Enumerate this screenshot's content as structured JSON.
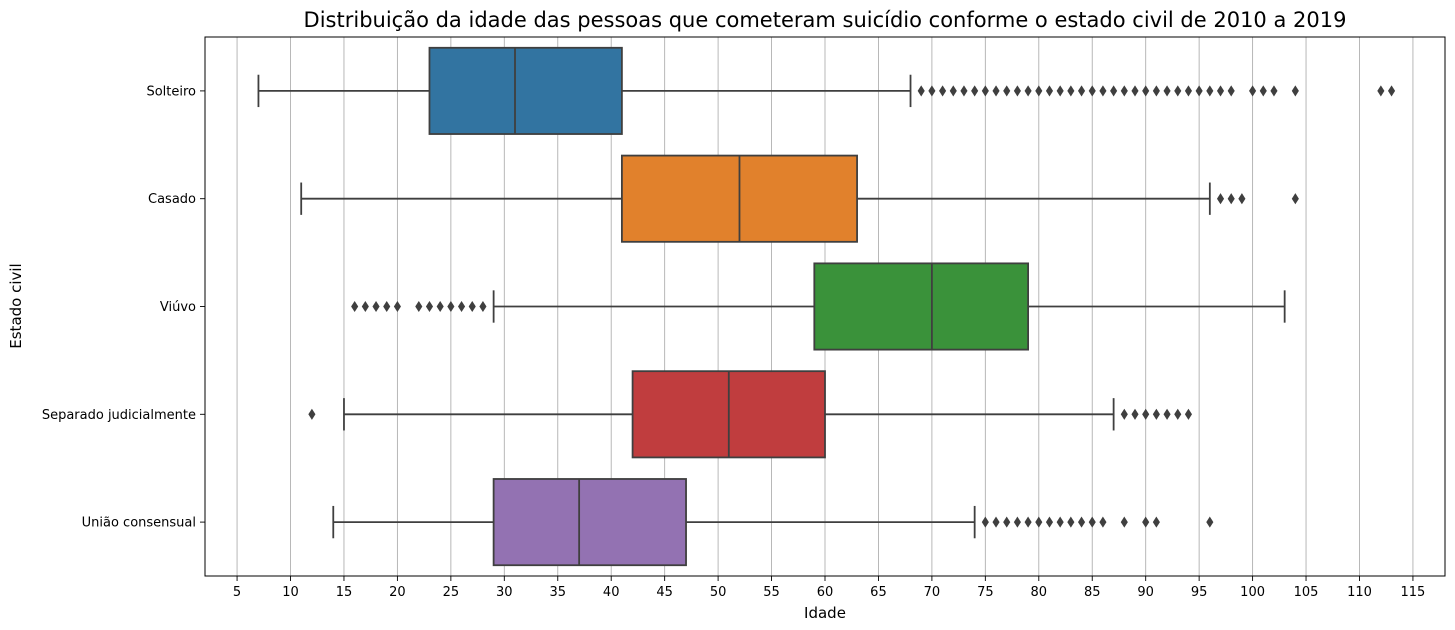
{
  "chart_data": {
    "type": "boxplot",
    "orientation": "horizontal",
    "title": "Distribuição da idade das pessoas que cometeram suicídio conforme o estado civil de 2010 a 2019",
    "xlabel": "Idade",
    "ylabel": "Estado civil",
    "xlim": [
      2,
      118
    ],
    "xticks": [
      5,
      10,
      15,
      20,
      25,
      30,
      35,
      40,
      45,
      50,
      55,
      60,
      65,
      70,
      75,
      80,
      85,
      90,
      95,
      100,
      105,
      110,
      115
    ],
    "grid": "vertical",
    "series": [
      {
        "name": "Solteiro",
        "color": "#3274a1",
        "whisker_low": 7,
        "q1": 23,
        "median": 31,
        "q3": 41,
        "whisker_high": 68,
        "outliers": [
          69,
          70,
          71,
          72,
          73,
          74,
          75,
          76,
          77,
          78,
          79,
          80,
          81,
          82,
          83,
          84,
          85,
          86,
          87,
          88,
          89,
          90,
          91,
          92,
          93,
          94,
          95,
          96,
          97,
          98,
          100,
          101,
          102,
          104,
          112,
          113
        ]
      },
      {
        "name": "Casado",
        "color": "#e1812c",
        "whisker_low": 11,
        "q1": 41,
        "median": 52,
        "q3": 63,
        "whisker_high": 96,
        "outliers": [
          97,
          98,
          99,
          104
        ]
      },
      {
        "name": "Viúvo",
        "color": "#3a923a",
        "whisker_low": 29,
        "q1": 59,
        "median": 70,
        "q3": 79,
        "whisker_high": 103,
        "outliers": [
          16,
          17,
          18,
          19,
          20,
          22,
          23,
          24,
          25,
          26,
          27,
          28
        ]
      },
      {
        "name": "Separado judicialmente",
        "color": "#c03d3e",
        "whisker_low": 15,
        "q1": 42,
        "median": 51,
        "q3": 60,
        "whisker_high": 87,
        "outliers": [
          12,
          88,
          89,
          90,
          91,
          92,
          93,
          94
        ]
      },
      {
        "name": "União consensual",
        "color": "#9372b2",
        "whisker_low": 14,
        "q1": 29,
        "median": 37,
        "q3": 47,
        "whisker_high": 74,
        "outliers": [
          75,
          76,
          77,
          78,
          79,
          80,
          81,
          82,
          83,
          84,
          85,
          86,
          88,
          90,
          91,
          96
        ]
      }
    ]
  }
}
